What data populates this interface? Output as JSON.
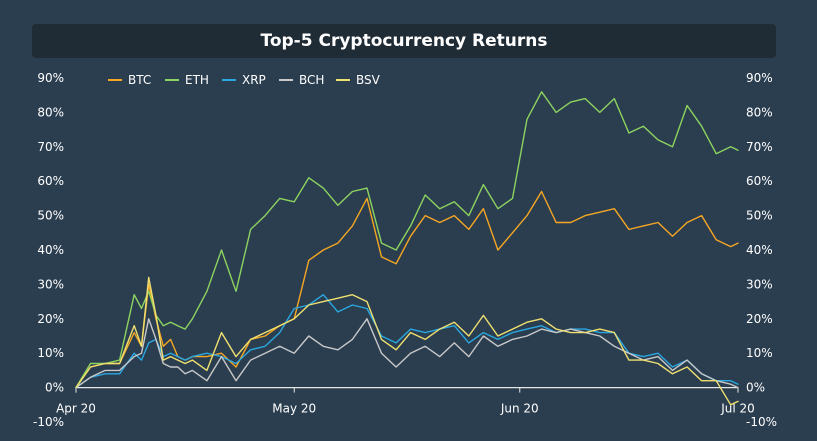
{
  "chart_data": {
    "type": "line",
    "title": "Top-5 Cryptocurrency Returns",
    "xlabel": "",
    "ylabel": "",
    "ylim": [
      -10,
      90
    ],
    "y_ticks": [
      "90%",
      "80%",
      "70%",
      "60%",
      "50%",
      "40%",
      "30%",
      "20%",
      "10%",
      "0%",
      "-10%"
    ],
    "x_ticks": [
      "Apr 20",
      "May 20",
      "Jun 20",
      "Jul 20"
    ],
    "x_tick_days": [
      0,
      30,
      61,
      91
    ],
    "x_range_days": [
      0,
      91
    ],
    "grid": false,
    "legend_position": "top-left",
    "x": [
      0,
      2,
      4,
      6,
      8,
      9,
      10,
      11,
      12,
      13,
      14,
      15,
      16,
      18,
      20,
      22,
      24,
      26,
      28,
      30,
      32,
      34,
      36,
      38,
      40,
      42,
      44,
      46,
      48,
      50,
      52,
      54,
      56,
      58,
      60,
      62,
      64,
      66,
      68,
      70,
      72,
      74,
      76,
      78,
      80,
      82,
      84,
      86,
      88,
      90,
      91
    ],
    "series": [
      {
        "name": "BTC",
        "color": "#f5a623",
        "values": [
          0,
          6,
          7,
          7,
          16,
          12,
          30,
          20,
          12,
          14,
          9,
          8,
          9,
          9,
          10,
          6,
          14,
          15,
          18,
          20,
          37,
          40,
          42,
          47,
          55,
          38,
          36,
          44,
          50,
          48,
          50,
          46,
          52,
          40,
          45,
          50,
          57,
          48,
          48,
          50,
          51,
          52,
          46,
          47,
          48,
          44,
          48,
          50,
          43,
          41,
          42
        ]
      },
      {
        "name": "ETH",
        "color": "#8dd35f",
        "values": [
          0,
          7,
          7,
          8,
          27,
          23,
          28,
          21,
          18,
          19,
          18,
          17,
          20,
          28,
          40,
          28,
          46,
          50,
          55,
          54,
          61,
          58,
          53,
          57,
          58,
          42,
          40,
          47,
          56,
          52,
          54,
          50,
          59,
          52,
          55,
          78,
          86,
          80,
          83,
          84,
          80,
          84,
          74,
          76,
          72,
          70,
          82,
          76,
          68,
          70,
          69
        ]
      },
      {
        "name": "XRP",
        "color": "#2aa7e0",
        "values": [
          0,
          3,
          4,
          4,
          10,
          8,
          13,
          14,
          9,
          10,
          9,
          8,
          9,
          10,
          9,
          7,
          11,
          12,
          16,
          23,
          24,
          27,
          22,
          24,
          23,
          15,
          13,
          17,
          16,
          17,
          18,
          13,
          16,
          14,
          16,
          17,
          18,
          16,
          17,
          17,
          16,
          16,
          10,
          9,
          10,
          6,
          8,
          4,
          2,
          2,
          1
        ]
      },
      {
        "name": "BCH",
        "color": "#c8c8c8",
        "values": [
          0,
          3,
          5,
          5,
          9,
          10,
          20,
          14,
          7,
          6,
          6,
          4,
          5,
          2,
          9,
          2,
          8,
          10,
          12,
          10,
          15,
          12,
          11,
          14,
          20,
          10,
          6,
          10,
          12,
          9,
          13,
          9,
          15,
          12,
          14,
          15,
          17,
          16,
          17,
          16,
          15,
          12,
          10,
          8,
          9,
          5,
          8,
          4,
          2,
          1,
          0
        ]
      },
      {
        "name": "BSV",
        "color": "#f0e070",
        "values": [
          0,
          6,
          7,
          7,
          18,
          12,
          32,
          21,
          8,
          9,
          8,
          7,
          8,
          5,
          16,
          9,
          14,
          16,
          18,
          20,
          24,
          25,
          26,
          27,
          25,
          14,
          11,
          16,
          14,
          17,
          19,
          15,
          21,
          15,
          17,
          19,
          20,
          17,
          16,
          16,
          17,
          16,
          8,
          8,
          7,
          4,
          6,
          2,
          2,
          -5,
          -4
        ]
      }
    ]
  }
}
